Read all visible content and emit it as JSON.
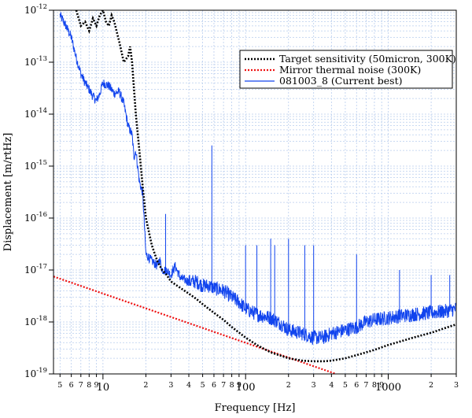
{
  "chart_data": {
    "type": "line",
    "xlabel": "Frequency [Hz]",
    "ylabel": "Displacement [m/rtHz]",
    "xscale": "log",
    "yscale": "log",
    "xlim": [
      4.5,
      3000
    ],
    "ylim": [
      1e-19,
      1e-12
    ],
    "grid": true,
    "legend_placement": "top-right",
    "x_major_ticks": [
      {
        "value": 10,
        "label": "10"
      },
      {
        "value": 100,
        "label": "100"
      },
      {
        "value": 1000,
        "label": "1000"
      }
    ],
    "x_minor_ticks": [
      {
        "value": 5,
        "label": "5"
      },
      {
        "value": 6,
        "label": "6"
      },
      {
        "value": 7,
        "label": "7"
      },
      {
        "value": 8,
        "label": "8"
      },
      {
        "value": 9,
        "label": "9"
      },
      {
        "value": 20,
        "label": "2"
      },
      {
        "value": 30,
        "label": "3"
      },
      {
        "value": 40,
        "label": "4"
      },
      {
        "value": 50,
        "label": "5"
      },
      {
        "value": 60,
        "label": "6"
      },
      {
        "value": 70,
        "label": "7"
      },
      {
        "value": 80,
        "label": "8"
      },
      {
        "value": 90,
        "label": "9"
      },
      {
        "value": 200,
        "label": "2"
      },
      {
        "value": 300,
        "label": "3"
      },
      {
        "value": 400,
        "label": "4"
      },
      {
        "value": 500,
        "label": "5"
      },
      {
        "value": 600,
        "label": "6"
      },
      {
        "value": 700,
        "label": "7"
      },
      {
        "value": 800,
        "label": "8"
      },
      {
        "value": 900,
        "label": "9"
      },
      {
        "value": 2000,
        "label": "2"
      },
      {
        "value": 3000,
        "label": "3"
      }
    ],
    "y_major_ticks": [
      {
        "exp": -12,
        "base": "10",
        "sup": "-12"
      },
      {
        "exp": -13,
        "base": "10",
        "sup": "-13"
      },
      {
        "exp": -14,
        "base": "10",
        "sup": "-14"
      },
      {
        "exp": -15,
        "base": "10",
        "sup": "-15"
      },
      {
        "exp": -16,
        "base": "10",
        "sup": "-16"
      },
      {
        "exp": -17,
        "base": "10",
        "sup": "-17"
      },
      {
        "exp": -18,
        "base": "10",
        "sup": "-18"
      },
      {
        "exp": -19,
        "base": "10",
        "sup": "-19"
      }
    ],
    "series": [
      {
        "name": "Target sensitivity (50micron, 300K)",
        "color": "#000000",
        "style": "dotted-thick",
        "x": [
          6.5,
          7,
          7.5,
          8,
          8.5,
          9,
          9.5,
          10,
          10.5,
          11,
          11.5,
          12,
          13,
          14,
          15,
          15.5,
          16,
          17,
          18,
          19,
          20,
          22,
          24,
          26,
          28,
          30,
          35,
          40,
          45,
          50,
          60,
          70,
          80,
          100,
          120,
          150,
          200,
          250,
          300,
          350,
          400,
          500,
          600,
          800,
          1000,
          1500,
          2000,
          3000
        ],
        "y": [
          1e-12,
          5e-13,
          6e-13,
          4e-13,
          7e-13,
          5e-13,
          8e-13,
          1e-12,
          6e-13,
          5e-13,
          8e-13,
          6e-13,
          2.5e-13,
          1e-13,
          1.3e-13,
          2e-13,
          1e-13,
          1e-14,
          2e-15,
          4e-16,
          1e-16,
          3e-17,
          1.5e-17,
          1e-17,
          8e-18,
          6e-18,
          4.5e-18,
          3.5e-18,
          2.8e-18,
          2.2e-18,
          1.5e-18,
          1.1e-18,
          8e-19,
          5e-19,
          3.6e-19,
          2.6e-19,
          2e-19,
          1.8e-19,
          1.75e-19,
          1.75e-19,
          1.8e-19,
          2e-19,
          2.3e-19,
          2.9e-19,
          3.6e-19,
          5e-19,
          6.2e-19,
          9e-19
        ]
      },
      {
        "name": "Mirror thermal noise (300K)",
        "color": "#ee1111",
        "style": "dotted",
        "x": [
          4.5,
          430
        ],
        "y": [
          7.5e-18,
          1e-19
        ]
      },
      {
        "name": "081003_8 (Current best)",
        "color": "#1144ee",
        "style": "solid",
        "x": [
          5,
          5.5,
          6,
          6.5,
          7,
          7.5,
          8,
          8.5,
          9,
          9.5,
          10,
          11,
          12,
          13,
          14,
          15,
          16,
          16.5,
          17,
          18,
          19,
          20,
          22,
          24,
          25,
          26,
          28,
          30,
          32,
          35,
          40,
          45,
          50,
          55,
          60,
          70,
          80,
          90,
          100,
          120,
          150,
          180,
          200,
          250,
          300,
          350,
          400,
          500,
          600,
          700,
          800,
          1000,
          1200,
          1500,
          2000,
          2500,
          3000
        ],
        "y": [
          8e-13,
          5e-13,
          3e-13,
          1.2e-13,
          6e-14,
          4e-14,
          3e-14,
          2.2e-14,
          1.8e-14,
          2.5e-14,
          4e-14,
          3.5e-14,
          2.5e-14,
          2.7e-14,
          1.6e-14,
          6e-15,
          4e-15,
          1.5e-15,
          2e-15,
          5e-16,
          3e-16,
          2e-17,
          1.5e-17,
          1.2e-17,
          1.6e-17,
          1e-17,
          1e-17,
          8e-18,
          1.2e-17,
          7e-18,
          6e-18,
          6e-18,
          5e-18,
          5e-18,
          4.5e-18,
          4e-18,
          3e-18,
          2.4e-18,
          1.8e-18,
          1.4e-18,
          1.2e-18,
          9e-19,
          7e-19,
          6e-19,
          5e-19,
          5e-19,
          6e-19,
          7e-19,
          8e-19,
          1e-18,
          1.1e-18,
          1.2e-18,
          1.3e-18,
          1.4e-18,
          1.5e-18,
          1.6e-18,
          1.8e-18
        ]
      }
    ],
    "peaks": [
      {
        "x": 27.5,
        "y": 1.2e-16
      },
      {
        "x": 58,
        "y": 2.5e-15
      },
      {
        "x": 100,
        "y": 3e-17
      },
      {
        "x": 120,
        "y": 3e-17
      },
      {
        "x": 150,
        "y": 4e-17
      },
      {
        "x": 160,
        "y": 3e-17
      },
      {
        "x": 200,
        "y": 4e-17
      },
      {
        "x": 260,
        "y": 3e-17
      },
      {
        "x": 300,
        "y": 3e-17
      },
      {
        "x": 600,
        "y": 2e-17
      },
      {
        "x": 1200,
        "y": 1e-17
      },
      {
        "x": 2000,
        "y": 8e-18
      },
      {
        "x": 2700,
        "y": 8e-18
      }
    ]
  }
}
